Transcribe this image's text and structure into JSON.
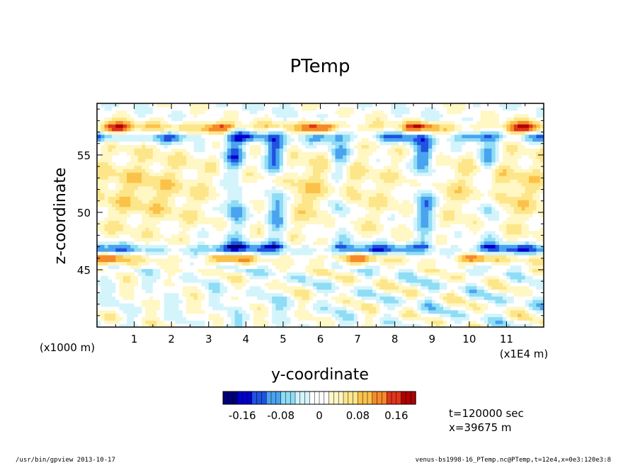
{
  "chart_data": {
    "type": "heatmap",
    "title": "PTemp",
    "xlabel": "y-coordinate",
    "ylabel": "z-coordinate",
    "x_unit": "(x1E4 m)",
    "y_unit": "(x1000 m)",
    "xlim": [
      0,
      12
    ],
    "ylim": [
      40,
      59.5
    ],
    "xticks": [
      "1",
      "2",
      "3",
      "4",
      "5",
      "6",
      "7",
      "8",
      "9",
      "10",
      "11"
    ],
    "yticks": [
      "45",
      "50",
      "55"
    ],
    "colorbar": {
      "range": [
        -0.2,
        0.2
      ],
      "tick_labels": [
        "-0.16",
        "-0.08",
        "0",
        "0.08",
        "0.16"
      ],
      "tick_values": [
        -0.16,
        -0.08,
        0,
        0.08,
        0.16
      ],
      "colors": [
        "#000077",
        "#0000cc",
        "#1f52e0",
        "#4aa3ef",
        "#8fdcf5",
        "#d4f4fb",
        "#ffffff",
        "#fff7c4",
        "#fde68a",
        "#fbc24a",
        "#f58a2a",
        "#e0351c",
        "#b00000"
      ]
    },
    "features": [
      {
        "name": "upper-stable-layer",
        "z": 57.3,
        "value": 0.17
      },
      {
        "name": "lower-stable-layer-cold",
        "z": 46.8,
        "value": -0.14
      },
      {
        "name": "lower-stable-layer-warm",
        "z": 46.2,
        "value": 0.12
      },
      {
        "name": "mixed-layer-warm-anomaly",
        "z_range": [
          48,
          56
        ],
        "value": 0.06
      },
      {
        "name": "downdraft-plume",
        "y": 3.7,
        "value": -0.12
      },
      {
        "name": "downdraft-plume",
        "y": 4.8,
        "value": -0.14
      },
      {
        "name": "downdraft-plume",
        "y": 6.5,
        "value": -0.1
      },
      {
        "name": "downdraft-plume",
        "y": 8.8,
        "value": -0.13
      },
      {
        "name": "downdraft-plume",
        "y": 10.5,
        "value": -0.1
      }
    ]
  },
  "annotations": {
    "time": "t=120000 sec",
    "position": "x=39675 m",
    "footer_left": "/usr/bin/gpview   2013-10-17",
    "footer_right": "venus-bs1998-16_PTemp.nc@PTemp,t=12e4,x=0e3:120e3:8"
  }
}
